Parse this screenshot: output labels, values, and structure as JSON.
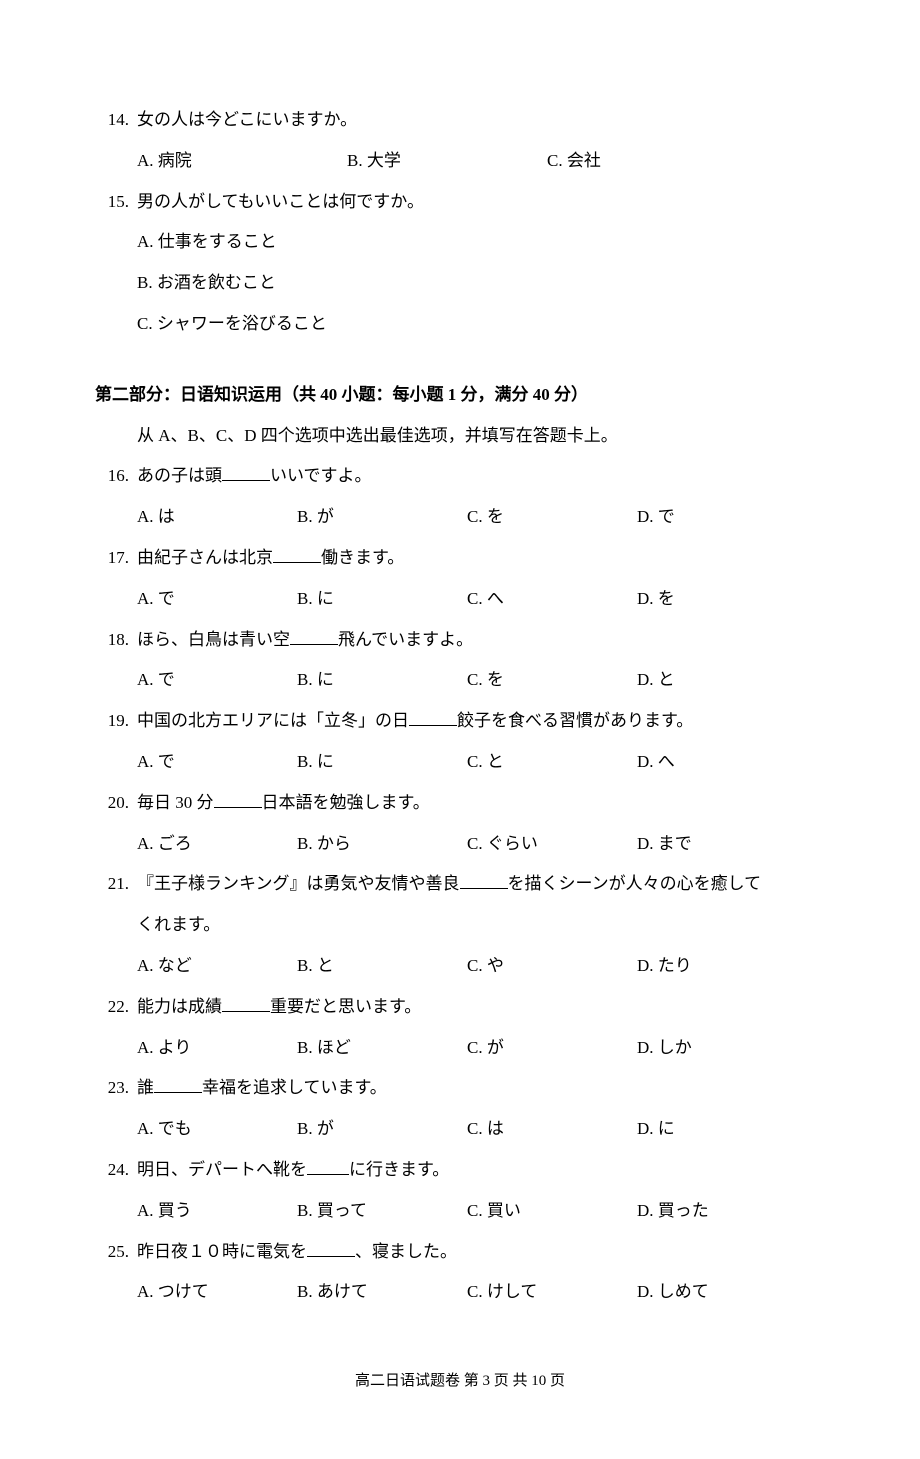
{
  "section1": {
    "q14": {
      "num": "14.",
      "text": "女の人は今どこにいますか。",
      "options": {
        "a": "A. 病院",
        "b": "B. 大学",
        "c": "C. 会社"
      }
    },
    "q15": {
      "num": "15.",
      "text": "男の人がしてもいいことは何ですか。",
      "options": {
        "a": "A. 仕事をすること",
        "b": "B. お酒を飲むこと",
        "c": "C. シャワーを浴びること"
      }
    }
  },
  "section2": {
    "header": "第二部分：日语知识运用（共 40 小题：每小题 1 分，满分 40 分）",
    "sub": "从 A、B、C、D 四个选项中选出最佳选项，并填写在答题卡上。",
    "q16": {
      "num": "16.",
      "pre": "あの子は頭",
      "post": "いいですよ。",
      "options": {
        "a": "A. は",
        "b": "B. が",
        "c": "C. を",
        "d": "D. で"
      }
    },
    "q17": {
      "num": "17.",
      "pre": "由紀子さんは北京",
      "post": "働きます。",
      "options": {
        "a": "A. で",
        "b": "B. に",
        "c": "C. へ",
        "d": "D. を"
      }
    },
    "q18": {
      "num": "18.",
      "pre": "ほら、白鳥は青い空",
      "post": "飛んでいますよ。",
      "options": {
        "a": "A. で",
        "b": "B. に",
        "c": "C. を",
        "d": "D. と"
      }
    },
    "q19": {
      "num": "19.",
      "pre": "中国の北方エリアには「立冬」の日",
      "post": "餃子を食べる習慣があります。",
      "options": {
        "a": "A. で",
        "b": "B. に",
        "c": "C. と",
        "d": "D. へ"
      }
    },
    "q20": {
      "num": "20.",
      "pre": "毎日 30 分",
      "post": "日本語を勉強します。",
      "options": {
        "a": "A. ごろ",
        "b": "B. から",
        "c": "C. ぐらい",
        "d": "D. まで"
      }
    },
    "q21": {
      "num": "21.",
      "pre": "『王子様ランキング』は勇気や友情や善良",
      "post": "を描くシーンが人々の心を癒して",
      "line2": "くれます。",
      "options": {
        "a": "A. など",
        "b": "B. と",
        "c": "C. や",
        "d": "D. たり"
      }
    },
    "q22": {
      "num": "22.",
      "pre": "能力は成績",
      "post": "重要だと思います。",
      "options": {
        "a": "A. より",
        "b": "B. ほど",
        "c": "C. が",
        "d": "D. しか"
      }
    },
    "q23": {
      "num": "23.",
      "pre": "誰",
      "post": "幸福を追求しています。",
      "options": {
        "a": "A. でも",
        "b": "B. が",
        "c": "C. は",
        "d": "D. に"
      }
    },
    "q24": {
      "num": "24.",
      "pre": "明日、デパートへ靴を",
      "post": "に行きます。",
      "options": {
        "a": "A. 買う",
        "b": "B. 買って",
        "c": "C. 買い",
        "d": "D. 買った"
      }
    },
    "q25": {
      "num": "25.",
      "pre": "昨日夜１０時に電気を",
      "post": "、寝ました。",
      "options": {
        "a": "A. つけて",
        "b": "B. あけて",
        "c": "C. けして",
        "d": "D. しめて"
      }
    }
  },
  "footer": {
    "text": "高二日语试题卷  第 3 页   共 10 页"
  }
}
